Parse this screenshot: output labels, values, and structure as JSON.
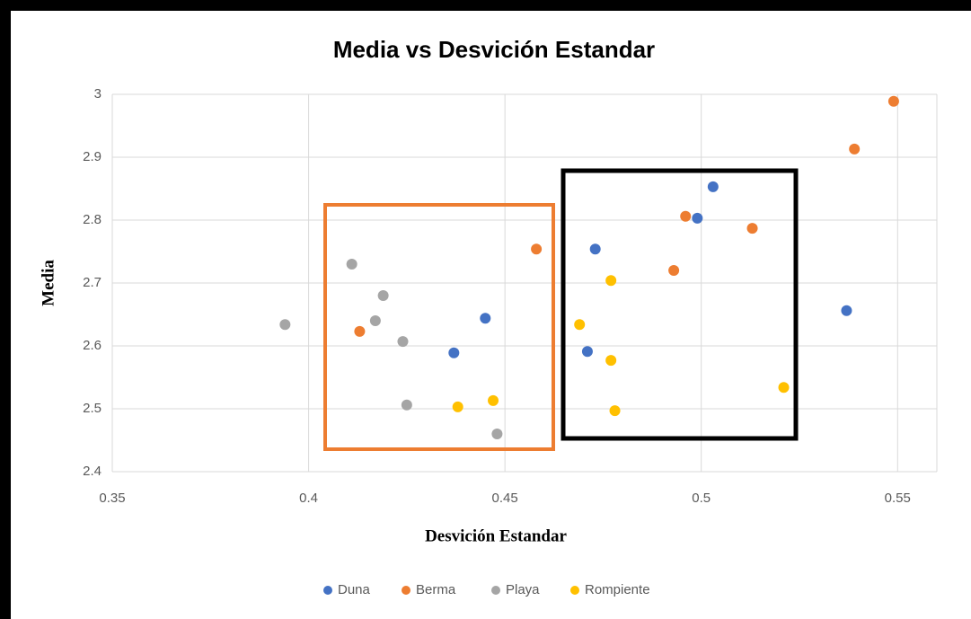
{
  "chart_data": {
    "type": "scatter",
    "title": "Media vs Desvición Estandar",
    "xlabel": "Desvición Estandar",
    "ylabel": "Media",
    "xlim": [
      0.35,
      0.56
    ],
    "xticks": [
      0.35,
      0.4,
      0.45,
      0.5,
      0.55
    ],
    "ylim": [
      2.4,
      3
    ],
    "yticks": [
      2.4,
      2.5,
      2.6,
      2.7,
      2.8,
      2.9,
      3
    ],
    "grid": true,
    "legend": "bottom",
    "series": [
      {
        "name": "Duna",
        "color": "#4472c4",
        "x": [
          0.503,
          0.499,
          0.473,
          0.445,
          0.437,
          0.471,
          0.537
        ],
        "values": [
          2.853,
          2.803,
          2.754,
          2.644,
          2.589,
          2.591,
          2.656
        ]
      },
      {
        "name": "Berma",
        "color": "#ed7d31",
        "x": [
          0.549,
          0.539,
          0.496,
          0.513,
          0.493,
          0.458,
          0.413
        ],
        "values": [
          2.989,
          2.913,
          2.806,
          2.787,
          2.72,
          2.754,
          2.623
        ]
      },
      {
        "name": "Playa",
        "color": "#a5a5a5",
        "x": [
          0.394,
          0.411,
          0.419,
          0.417,
          0.424,
          0.425,
          0.448
        ],
        "values": [
          2.634,
          2.73,
          2.68,
          2.64,
          2.607,
          2.506,
          2.46
        ]
      },
      {
        "name": "Rompiente",
        "color": "#ffc000",
        "x": [
          0.477,
          0.469,
          0.477,
          0.478,
          0.521,
          0.447,
          0.438
        ],
        "values": [
          2.704,
          2.634,
          2.577,
          2.497,
          2.534,
          2.513,
          2.503
        ]
      }
    ]
  }
}
